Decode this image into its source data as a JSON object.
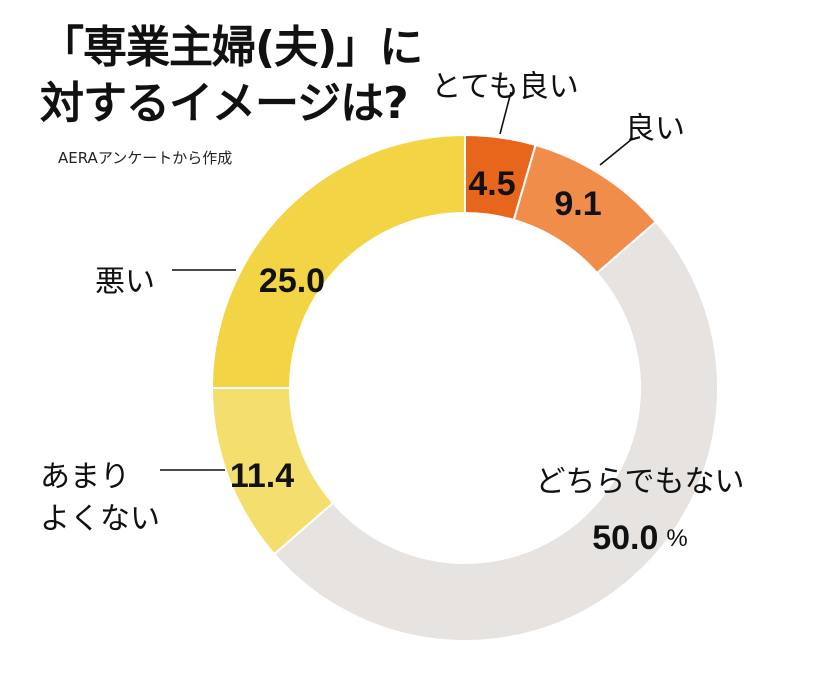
{
  "title_lines": [
    "「専業主婦(夫)」に",
    "対するイメージは?"
  ],
  "source": "AERAアンケートから作成",
  "chart_data": {
    "type": "pie",
    "style": "donut",
    "slices": [
      {
        "label": "とても良い",
        "value": 4.5,
        "color": "#E8661C"
      },
      {
        "label": "良い",
        "value": 9.1,
        "color": "#F08D4B"
      },
      {
        "label": "どちらでもない",
        "value": 50.0,
        "unit": "%",
        "color": "#E7E3E0"
      },
      {
        "label": "あまり\nよくない",
        "value": 11.4,
        "color": "#F3DE6E"
      },
      {
        "label": "悪い",
        "value": 25.0,
        "color": "#F3D444"
      }
    ],
    "legend": "none"
  }
}
